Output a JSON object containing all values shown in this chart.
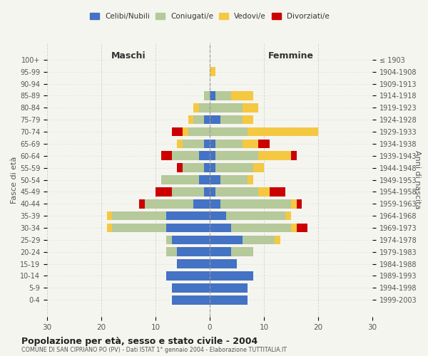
{
  "age_groups": [
    "0-4",
    "5-9",
    "10-14",
    "15-19",
    "20-24",
    "25-29",
    "30-34",
    "35-39",
    "40-44",
    "45-49",
    "50-54",
    "55-59",
    "60-64",
    "65-69",
    "70-74",
    "75-79",
    "80-84",
    "85-89",
    "90-94",
    "95-99",
    "100+"
  ],
  "birth_years": [
    "1999-2003",
    "1994-1998",
    "1989-1993",
    "1984-1988",
    "1979-1983",
    "1974-1978",
    "1969-1973",
    "1964-1968",
    "1959-1963",
    "1954-1958",
    "1949-1953",
    "1944-1948",
    "1939-1943",
    "1934-1938",
    "1929-1933",
    "1924-1928",
    "1919-1923",
    "1914-1918",
    "1909-1913",
    "1904-1908",
    "≤ 1903"
  ],
  "colors": {
    "celibe": "#4472C4",
    "coniugato": "#b5c99a",
    "vedovo": "#f5c842",
    "divorziato": "#cc0000"
  },
  "maschi": {
    "celibe": [
      7,
      7,
      8,
      6,
      6,
      7,
      8,
      8,
      3,
      1,
      2,
      1,
      2,
      1,
      0,
      1,
      0,
      0,
      0,
      0,
      0
    ],
    "coniugato": [
      0,
      0,
      0,
      0,
      2,
      1,
      10,
      10,
      9,
      6,
      7,
      4,
      5,
      4,
      4,
      2,
      2,
      1,
      0,
      0,
      0
    ],
    "vedovo": [
      0,
      0,
      0,
      0,
      0,
      0,
      1,
      1,
      0,
      0,
      0,
      0,
      0,
      1,
      1,
      1,
      1,
      0,
      0,
      0,
      0
    ],
    "divorziato": [
      0,
      0,
      0,
      0,
      0,
      0,
      0,
      0,
      1,
      3,
      0,
      1,
      2,
      0,
      2,
      0,
      0,
      0,
      0,
      0,
      0
    ]
  },
  "femmine": {
    "celibe": [
      7,
      7,
      8,
      5,
      4,
      6,
      4,
      3,
      2,
      1,
      2,
      1,
      1,
      1,
      0,
      2,
      0,
      1,
      0,
      0,
      0
    ],
    "coniugato": [
      0,
      0,
      0,
      0,
      4,
      6,
      11,
      11,
      13,
      8,
      5,
      7,
      8,
      5,
      7,
      4,
      6,
      3,
      0,
      0,
      0
    ],
    "vedovo": [
      0,
      0,
      0,
      0,
      0,
      1,
      1,
      1,
      1,
      2,
      1,
      2,
      6,
      3,
      13,
      2,
      3,
      4,
      0,
      1,
      0
    ],
    "divorziato": [
      0,
      0,
      0,
      0,
      0,
      0,
      2,
      0,
      1,
      3,
      0,
      0,
      1,
      2,
      0,
      0,
      0,
      0,
      0,
      0,
      0
    ]
  },
  "title": "Popolazione per età, sesso e stato civile - 2004",
  "subtitle": "COMUNE DI SAN CIPRIANO PO (PV) - Dati ISTAT 1° gennaio 2004 - Elaborazione TUTTITALIA.IT",
  "xlabel_left": "Maschi",
  "xlabel_right": "Femmine",
  "ylabel_left": "Fasce di età",
  "ylabel_right": "Anni di nascita",
  "xlim": 30,
  "legend_labels": [
    "Celibi/Nubili",
    "Coniugati/e",
    "Vedovi/e",
    "Divorziati/e"
  ],
  "background_color": "#f5f5f0",
  "grid_color": "#cccccc"
}
